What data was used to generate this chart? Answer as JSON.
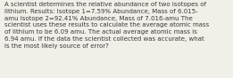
{
  "text": "A scientist determines the relative abundance of two isotopes of\nlithium. Results: Isotope 1=7.59% Abundance, Mass of 6.015-\namu Isotope 2=92.41% Abundance, Mass of 7.016-amu The\nscientist uses these results to calculate the average atomic mass\nof lithium to be 6.09 amu. The actual average atomic mass is\n6.94 amu. If the data the scientist collected was accurate, what\nis the most likely source of error?",
  "background_color": "#f0efe8",
  "text_color": "#3a3a3a",
  "font_size": 5.05,
  "fig_width": 2.61,
  "fig_height": 0.88,
  "dpi": 100
}
